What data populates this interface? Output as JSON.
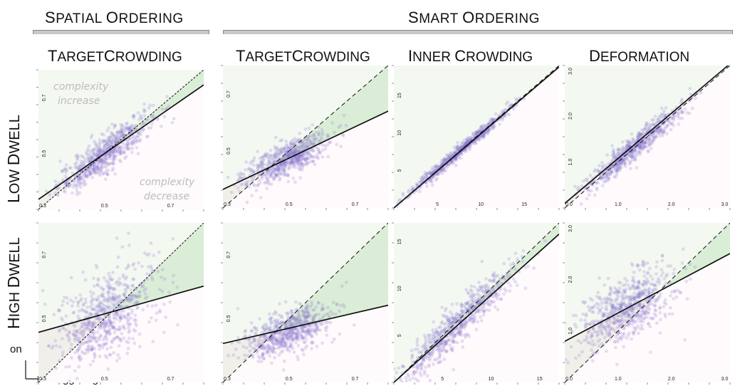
{
  "header": {
    "spatial": {
      "cap": "S",
      "rest": "PATIAL ",
      "cap2": "O",
      "rest2": "RDERING"
    },
    "smart": {
      "cap": "S",
      "rest": "MART ",
      "cap2": "O",
      "rest2": "RDERING"
    }
  },
  "columns": [
    {
      "cap": "T",
      "rest": "ARGET",
      "cap2": "C",
      "rest2": "ROWDING"
    },
    {
      "cap": "T",
      "rest": "ARGET",
      "cap2": "C",
      "rest2": "ROWDING"
    },
    {
      "cap": "I",
      "rest": "NNER ",
      "cap2": "C",
      "rest2": "ROWDING"
    },
    {
      "cap": "D",
      "rest": "EFORMATION",
      "cap2": "",
      "rest2": ""
    }
  ],
  "rows": [
    {
      "cap": "L",
      "rest": "OW ",
      "cap2": "D",
      "rest2": "WELL"
    },
    {
      "cap": "H",
      "rest": "IGH ",
      "cap2": "D",
      "rest2": "WELL"
    }
  ],
  "axis_notes": {
    "y": "on",
    "x": "staggering off"
  },
  "annotations": {
    "increase_line1": "complexity",
    "increase_line2": "increase",
    "decrease_line1": "complexity",
    "decrease_line2": "decrease"
  },
  "colors": {
    "increase": "#f8d8dc",
    "decrease": "#d8ecd4",
    "points": "#8878cc",
    "fit": "#111111",
    "diagonal": "#111111"
  },
  "chart_data": [
    {
      "type": "scatter",
      "panel": "Spatial Ordering / TargetCrowding / Low Dwell",
      "xlim": [
        0.3,
        0.8
      ],
      "ylim": [
        0.3,
        0.8
      ],
      "xticks": [
        "0.3",
        "0.5",
        "0.7"
      ],
      "yticks": [
        "0.5",
        "0.7"
      ],
      "cloud": {
        "cx": 0.5,
        "cy": 0.5,
        "spread_x": 0.07,
        "spread_y": 0.07,
        "corr": 0.88
      },
      "fit": {
        "intercept": 0.09,
        "slope": 0.82
      }
    },
    {
      "type": "scatter",
      "panel": "Smart Ordering / TargetCrowding / Low Dwell",
      "xlim": [
        0.3,
        0.8
      ],
      "ylim": [
        0.3,
        0.8
      ],
      "xticks": [
        "0.3",
        "0.5",
        "0.7"
      ],
      "yticks": [
        "0.5",
        "0.7"
      ],
      "cloud": {
        "cx": 0.49,
        "cy": 0.47,
        "spread_x": 0.065,
        "spread_y": 0.045,
        "corr": 0.75
      },
      "fit": {
        "intercept": 0.2,
        "slope": 0.55
      }
    },
    {
      "type": "scatter",
      "panel": "Smart Ordering / Inner Crowding / Low Dwell",
      "xlim": [
        0,
        19
      ],
      "ylim": [
        0,
        19
      ],
      "xticks": [
        "5",
        "10",
        "15"
      ],
      "yticks": [
        "5",
        "10",
        "15"
      ],
      "cloud": {
        "cx": 7.5,
        "cy": 7.5,
        "spread_x": 3.0,
        "spread_y": 3.0,
        "corr": 0.99
      },
      "fit": {
        "intercept": 0.0,
        "slope": 0.99
      }
    },
    {
      "type": "scatter",
      "panel": "Smart Ordering / Deformation / Low Dwell",
      "xlim": [
        0,
        3.1
      ],
      "ylim": [
        0,
        3.1
      ],
      "xticks": [
        "0.0",
        "1.0",
        "2.0",
        "3.0"
      ],
      "yticks": [
        "1.0",
        "2.0",
        "3.0"
      ],
      "cloud": {
        "cx": 1.3,
        "cy": 1.3,
        "spread_x": 0.45,
        "spread_y": 0.45,
        "corr": 0.95
      },
      "fit": {
        "intercept": 0.1,
        "slope": 0.98
      }
    },
    {
      "type": "scatter",
      "panel": "Spatial Ordering / TargetCrowding / High Dwell",
      "xlim": [
        0.3,
        0.8
      ],
      "ylim": [
        0.3,
        0.8
      ],
      "xticks": [
        "0.3",
        "0.5",
        "0.7"
      ],
      "yticks": [
        "0.5",
        "0.7"
      ],
      "cloud": {
        "cx": 0.5,
        "cy": 0.51,
        "spread_x": 0.075,
        "spread_y": 0.08,
        "corr": 0.5
      },
      "fit": {
        "intercept": 0.37,
        "slope": 0.29
      }
    },
    {
      "type": "scatter",
      "panel": "Smart Ordering / TargetCrowding / High Dwell",
      "xlim": [
        0.3,
        0.8
      ],
      "ylim": [
        0.3,
        0.8
      ],
      "xticks": [
        "0.3",
        "0.5",
        "0.7"
      ],
      "yticks": [
        "0.5",
        "0.7"
      ],
      "cloud": {
        "cx": 0.49,
        "cy": 0.46,
        "spread_x": 0.065,
        "spread_y": 0.04,
        "corr": 0.55
      },
      "fit": {
        "intercept": 0.35,
        "slope": 0.24
      }
    },
    {
      "type": "scatter",
      "panel": "Smart Ordering / Inner Crowding / High Dwell",
      "xlim": [
        0,
        17
      ],
      "ylim": [
        0,
        17
      ],
      "xticks": [
        "5",
        "10",
        "15"
      ],
      "yticks": [
        "5",
        "10",
        "15"
      ],
      "cloud": {
        "cx": 6.5,
        "cy": 6.2,
        "spread_x": 2.8,
        "spread_y": 2.9,
        "corr": 0.93
      },
      "fit": {
        "intercept": 0.0,
        "slope": 0.93
      }
    },
    {
      "type": "scatter",
      "panel": "Smart Ordering / Deformation / High Dwell",
      "xlim": [
        0,
        3.1
      ],
      "ylim": [
        0,
        3.1
      ],
      "xticks": [
        "0.0",
        "1.0",
        "2.0",
        "3.0"
      ],
      "yticks": [
        "1.0",
        "2.0",
        "3.0"
      ],
      "cloud": {
        "cx": 1.15,
        "cy": 1.45,
        "spread_x": 0.45,
        "spread_y": 0.4,
        "corr": 0.55
      },
      "fit": {
        "intercept": 0.8,
        "slope": 0.55
      }
    }
  ]
}
